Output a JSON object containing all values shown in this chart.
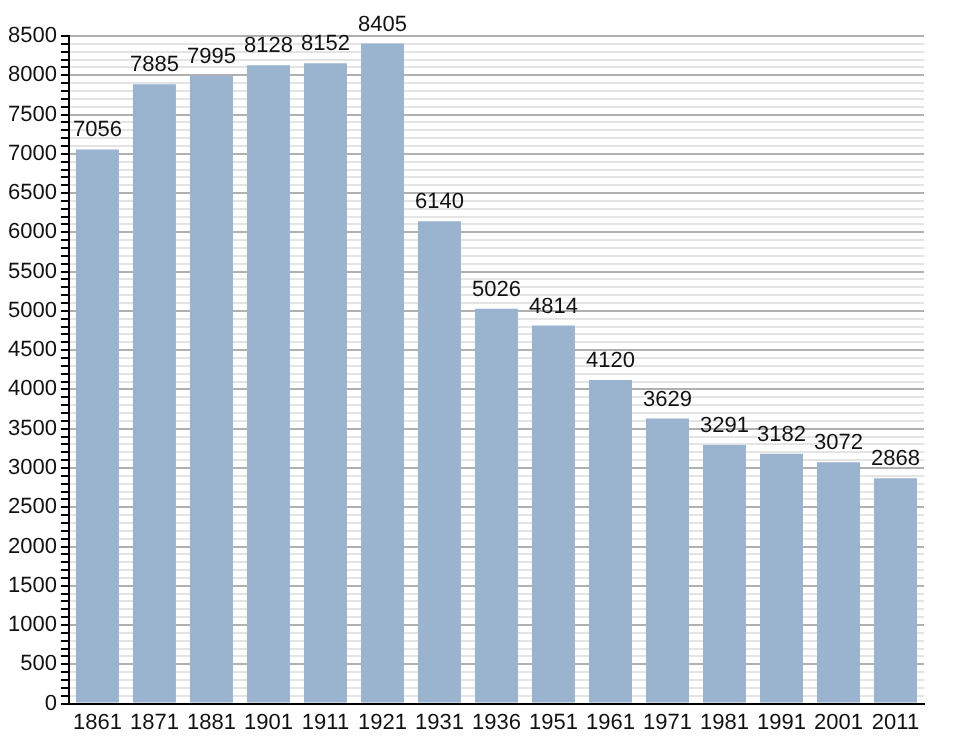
{
  "chart_data": {
    "type": "bar",
    "categories": [
      "1861",
      "1871",
      "1881",
      "1901",
      "1911",
      "1921",
      "1931",
      "1936",
      "1951",
      "1961",
      "1971",
      "1981",
      "1991",
      "2001",
      "2011"
    ],
    "values": [
      7056,
      7885,
      7995,
      8128,
      8152,
      8405,
      6140,
      5026,
      4814,
      4120,
      3629,
      3291,
      3182,
      3072,
      2868
    ],
    "color": "#9ab3cf",
    "ylim": [
      0,
      8500
    ],
    "yticks": [
      0,
      {
        "value": 100,
        "label": null
      },
      {
        "value": 200,
        "label": null
      },
      {
        "value": 300,
        "label": null
      },
      {
        "value": 400,
        "label": null
      },
      500,
      {
        "value": 600,
        "label": null
      },
      {
        "value": 700,
        "label": null
      },
      {
        "value": 800,
        "label": null
      },
      {
        "value": 900,
        "label": null
      },
      1000,
      {
        "value": 1100,
        "label": null
      },
      {
        "value": 1200,
        "label": null
      },
      {
        "value": 1300,
        "label": null
      },
      {
        "value": 1400,
        "label": null
      },
      1500,
      {
        "value": 1600,
        "label": null
      },
      {
        "value": 1700,
        "label": null
      },
      {
        "value": 1800,
        "label": null
      },
      {
        "value": 1900,
        "label": null
      },
      2000,
      {
        "value": 2100,
        "label": null
      },
      {
        "value": 2200,
        "label": null
      },
      {
        "value": 2300,
        "label": null
      },
      {
        "value": 2400,
        "label": null
      },
      2500,
      {
        "value": 2600,
        "label": null
      },
      {
        "value": 2700,
        "label": null
      },
      {
        "value": 2800,
        "label": null
      },
      {
        "value": 2900,
        "label": null
      },
      3000,
      {
        "value": 3100,
        "label": null
      },
      {
        "value": 3200,
        "label": null
      },
      {
        "value": 3300,
        "label": null
      },
      {
        "value": 3400,
        "label": null
      },
      3500,
      {
        "value": 3600,
        "label": null
      },
      {
        "value": 3700,
        "label": null
      },
      {
        "value": 3800,
        "label": null
      },
      {
        "value": 3900,
        "label": null
      },
      4000,
      {
        "value": 4100,
        "label": null
      },
      {
        "value": 4200,
        "label": null
      },
      {
        "value": 4300,
        "label": null
      },
      {
        "value": 4400,
        "label": null
      },
      4500,
      {
        "value": 4600,
        "label": null
      },
      {
        "value": 4700,
        "label": null
      },
      {
        "value": 4800,
        "label": null
      },
      {
        "value": 4900,
        "label": null
      },
      5000,
      {
        "value": 5100,
        "label": null
      },
      {
        "value": 5200,
        "label": null
      },
      {
        "value": 5300,
        "label": null
      },
      {
        "value": 5400,
        "label": null
      },
      5500,
      {
        "value": 5600,
        "label": null
      },
      {
        "value": 5700,
        "label": null
      },
      {
        "value": 5800,
        "label": null
      },
      {
        "value": 5900,
        "label": null
      },
      6000,
      {
        "value": 6100,
        "label": null
      },
      {
        "value": 6200,
        "label": null
      },
      {
        "value": 6300,
        "label": null
      },
      {
        "value": 6400,
        "label": null
      },
      6500,
      {
        "value": 6600,
        "label": null
      },
      {
        "value": 6700,
        "label": null
      },
      {
        "value": 6800,
        "label": null
      },
      {
        "value": 6900,
        "label": null
      },
      7000,
      {
        "value": 7100,
        "label": null
      },
      {
        "value": 7200,
        "label": null
      },
      {
        "value": 7300,
        "label": null
      },
      {
        "value": 7400,
        "label": null
      },
      7500,
      {
        "value": 7600,
        "label": null
      },
      {
        "value": 7700,
        "label": null
      },
      {
        "value": 7800,
        "label": null
      },
      {
        "value": 7900,
        "label": null
      },
      8000,
      {
        "value": 8100,
        "label": null
      },
      {
        "value": 8200,
        "label": null
      },
      {
        "value": 8300,
        "label": null
      },
      {
        "value": 8400,
        "label": null
      },
      8500
    ],
    "grid": "y",
    "data_labels": true
  }
}
